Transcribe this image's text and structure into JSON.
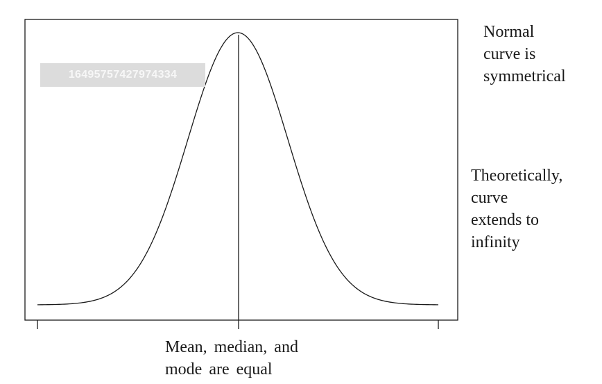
{
  "notes": {
    "symmetric": [
      "Normal",
      "curve is",
      "symmetrical"
    ],
    "infinity": [
      "Theoretically,",
      "curve",
      "extends to",
      "infinity"
    ],
    "center": [
      "Mean, median, and",
      "mode are equal"
    ]
  },
  "watermark": "16495757427974334",
  "curve": {
    "type": "normal",
    "mean": 0,
    "sd": 1,
    "x_range": [
      -4,
      4
    ],
    "center_line": 0
  },
  "colors": {
    "line": "#1a1a1a",
    "background": "#ffffff"
  }
}
